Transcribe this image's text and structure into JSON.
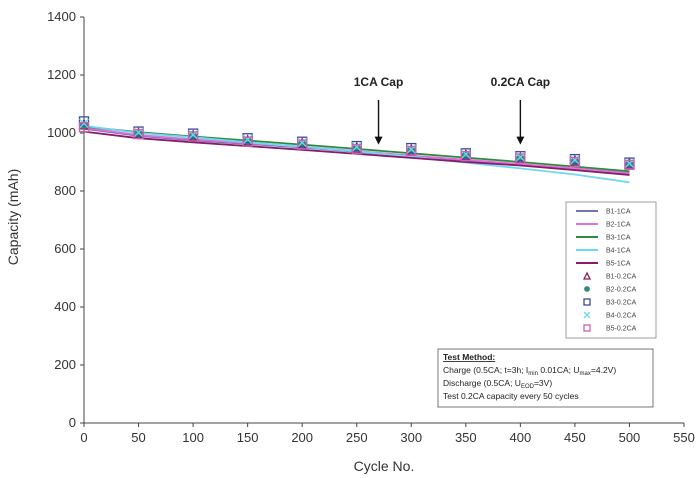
{
  "chart_data": {
    "type": "line",
    "title": "",
    "xlabel": "Cycle No.",
    "ylabel": "Capacity (mAh)",
    "xlim": [
      0,
      550
    ],
    "ylim": [
      0,
      1400
    ],
    "x_ticks": [
      0,
      50,
      100,
      150,
      200,
      250,
      300,
      350,
      400,
      450,
      500,
      550
    ],
    "y_ticks": [
      0,
      200,
      400,
      600,
      800,
      1000,
      1200,
      1400
    ],
    "grid": false,
    "legend_position": "right",
    "series": [
      {
        "name": "B1-1CA",
        "color": "#7a6fb8",
        "kind": "line",
        "x": [
          0,
          50,
          100,
          150,
          200,
          250,
          300,
          350,
          400,
          450,
          500
        ],
        "y": [
          1015,
          990,
          975,
          962,
          950,
          935,
          918,
          905,
          890,
          875,
          860
        ]
      },
      {
        "name": "B2-1CA",
        "color": "#e070d8",
        "kind": "line",
        "x": [
          0,
          50,
          100,
          150,
          200,
          250,
          300,
          350,
          400,
          450,
          500
        ],
        "y": [
          1018,
          993,
          978,
          965,
          953,
          938,
          922,
          908,
          893,
          878,
          862
        ]
      },
      {
        "name": "B3-1CA",
        "color": "#2e8b3e",
        "kind": "line",
        "x": [
          0,
          50,
          100,
          150,
          200,
          250,
          300,
          350,
          400,
          450,
          500
        ],
        "y": [
          1022,
          1003,
          988,
          974,
          960,
          945,
          930,
          915,
          900,
          884,
          868
        ]
      },
      {
        "name": "B4-1CA",
        "color": "#6fd8f0",
        "kind": "line",
        "x": [
          0,
          50,
          100,
          150,
          200,
          250,
          300,
          350,
          400,
          450,
          500
        ],
        "y": [
          1025,
          1000,
          985,
          968,
          952,
          937,
          918,
          898,
          878,
          857,
          830
        ]
      },
      {
        "name": "B5-1CA",
        "color": "#8a1a6a",
        "kind": "line",
        "x": [
          0,
          50,
          100,
          150,
          200,
          250,
          300,
          350,
          400,
          450,
          500
        ],
        "y": [
          1005,
          982,
          968,
          955,
          942,
          928,
          914,
          900,
          888,
          872,
          855
        ]
      },
      {
        "name": "B1-0.2CA",
        "color": "#8a1a5a",
        "kind": "marker",
        "marker": "triangle",
        "x": [
          0,
          50,
          100,
          150,
          200,
          250,
          300,
          350,
          400,
          450,
          500
        ],
        "y": [
          1030,
          1000,
          992,
          975,
          965,
          950,
          943,
          925,
          915,
          905,
          895
        ]
      },
      {
        "name": "B2-0.2CA",
        "color": "#2e8b7e",
        "kind": "marker",
        "marker": "circle",
        "x": [
          0,
          50,
          100,
          150,
          200,
          250,
          300,
          350,
          400,
          450,
          500
        ],
        "y": [
          1028,
          998,
          990,
          973,
          963,
          948,
          941,
          923,
          913,
          903,
          893
        ]
      },
      {
        "name": "B3-0.2CA",
        "color": "#3a4aa0",
        "kind": "marker",
        "marker": "square",
        "x": [
          0,
          50,
          100,
          150,
          200,
          250,
          300,
          350,
          400,
          450,
          500
        ],
        "y": [
          1040,
          1005,
          998,
          982,
          970,
          955,
          948,
          930,
          920,
          910,
          898
        ]
      },
      {
        "name": "B4-0.2CA",
        "color": "#6fd8f0",
        "kind": "marker",
        "marker": "x",
        "x": [
          0,
          50,
          100,
          150,
          200,
          250,
          300,
          350,
          400,
          450,
          500
        ],
        "y": [
          1033,
          1002,
          994,
          978,
          967,
          952,
          944,
          927,
          917,
          907,
          895
        ]
      },
      {
        "name": "B5-0.2CA",
        "color": "#d060b0",
        "kind": "marker",
        "marker": "square",
        "x": [
          0,
          50,
          100,
          150,
          200,
          250,
          300,
          350,
          400,
          450,
          500
        ],
        "y": [
          1020,
          996,
          988,
          970,
          960,
          944,
          938,
          920,
          912,
          900,
          890
        ]
      }
    ],
    "annotations": [
      {
        "text": "1CA Cap",
        "x": 270,
        "arrow_to_y": 960
      },
      {
        "text": "0.2CA Cap",
        "x": 400,
        "arrow_to_y": 960
      }
    ],
    "test_method": {
      "heading": "Test Method:",
      "line1_parts": [
        "Charge (0.5CA; t=3h; I",
        "min",
        " 0.01CA; U",
        "max",
        "=4.2V)"
      ],
      "line2_parts": [
        "Discharge (0.5CA; U",
        "EOD",
        "=3V)"
      ],
      "line3": "Test 0.2CA capacity every 50 cycles"
    }
  }
}
